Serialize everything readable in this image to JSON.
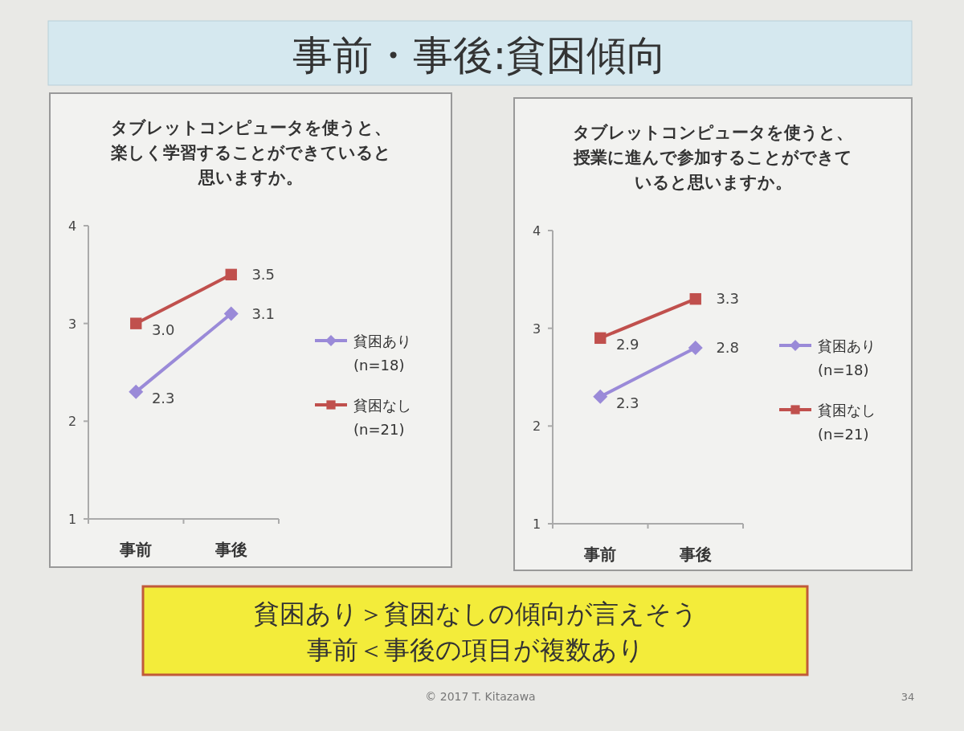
{
  "chart_data": [
    {
      "type": "other",
      "title": "事前・事後:貧困傾向",
      "annotations": [
        "貧困あり＞貧困なしの傾向が言えそう",
        "事前＜事後の項目が複数あり",
        "© 2017 T. Kitazawa",
        "34"
      ]
    },
    {
      "type": "line",
      "title": "タブレットコンピュータを使うと、楽しく学習することができていると思いますか。",
      "categories": [
        "事前",
        "事後"
      ],
      "ylim": [
        1,
        4
      ],
      "yticks": [
        1,
        2,
        3,
        4
      ],
      "legend": "right",
      "series": [
        {
          "name": "貧困あり (n=18)",
          "color": "#9a8ad8",
          "marker": "diamond",
          "values": [
            2.3,
            3.1
          ],
          "value_labels": [
            "2.3",
            "3.1"
          ]
        },
        {
          "name": "貧困なし (n=21)",
          "color": "#c0504d",
          "marker": "square",
          "values": [
            3.0,
            3.5
          ],
          "value_labels": [
            "3.0",
            "3.5"
          ]
        }
      ]
    },
    {
      "type": "line",
      "title": "タブレットコンピュータを使うと、授業に進んで参加することができていると思いますか。",
      "categories": [
        "事前",
        "事後"
      ],
      "ylim": [
        1,
        4
      ],
      "yticks": [
        1,
        2,
        3,
        4
      ],
      "legend": "right",
      "series": [
        {
          "name": "貧困あり (n=18)",
          "color": "#9a8ad8",
          "marker": "diamond",
          "values": [
            2.3,
            2.8
          ],
          "value_labels": [
            "2.3",
            "2.8"
          ]
        },
        {
          "name": "貧困なし (n=21)",
          "color": "#c0504d",
          "marker": "square",
          "values": [
            2.9,
            3.3
          ],
          "value_labels": [
            "2.9",
            "3.3"
          ]
        }
      ]
    }
  ]
}
